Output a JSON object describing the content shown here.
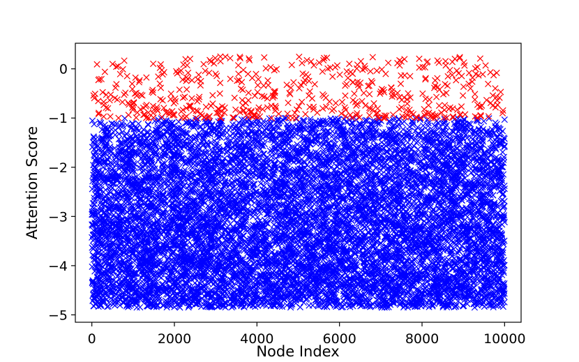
{
  "chart_data": {
    "type": "scatter",
    "title": "",
    "xlabel": "Node Index",
    "ylabel": "Attention Score",
    "xlim": [
      -400,
      10400
    ],
    "ylim": [
      -5.15,
      0.52
    ],
    "x_ticks": [
      0,
      2000,
      4000,
      6000,
      8000,
      10000
    ],
    "x_tick_labels": [
      "0",
      "2000",
      "4000",
      "6000",
      "8000",
      "10000"
    ],
    "y_ticks": [
      0,
      -1,
      -2,
      -3,
      -4,
      -5
    ],
    "y_tick_labels": [
      "0",
      "−1",
      "−2",
      "−3",
      "−4",
      "−5"
    ],
    "marker": "x",
    "grid": false,
    "legend": "none",
    "series": [
      {
        "color": "#ff0000",
        "description": "nodes with score above threshold",
        "x_range": [
          0,
          10000
        ],
        "y_range": [
          -1.0,
          0.25
        ],
        "approx_points": 520
      },
      {
        "color": "#0000ff",
        "description": "nodes with score below threshold",
        "x_range": [
          0,
          10000
        ],
        "y_range": [
          -4.85,
          -1.0
        ],
        "approx_points": 9480
      }
    ],
    "threshold": -1.0
  }
}
